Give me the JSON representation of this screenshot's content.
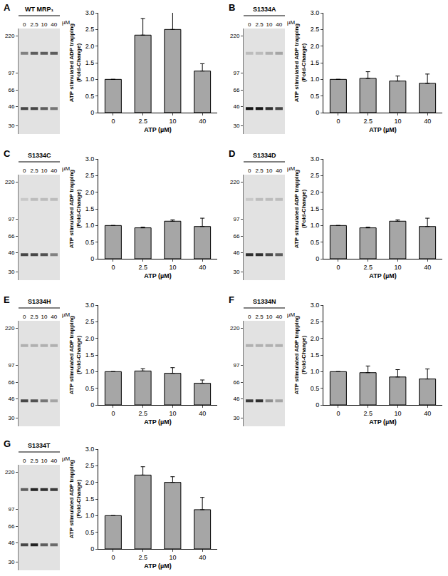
{
  "chart_data": [
    {
      "type": "gel",
      "panel": "A",
      "title": "WT MRP₁",
      "categories": [
        "0",
        "2.5",
        "10",
        "40"
      ],
      "unit": "µM",
      "log": "y",
      "ylim": [
        25,
        260
      ],
      "yticks": [
        220,
        97,
        66,
        46,
        30
      ],
      "bands": [
        {
          "mw": 150,
          "values": [
            0.45,
            0.6,
            0.6,
            0.6
          ],
          "marker": "arrow"
        },
        {
          "mw": 44,
          "values": [
            0.7,
            0.7,
            0.6,
            0.5
          ]
        }
      ]
    },
    {
      "type": "bar",
      "categories": [
        "0",
        "2.5",
        "10",
        "40"
      ],
      "values": [
        1.0,
        2.33,
        2.5,
        1.25
      ],
      "errors": [
        0,
        0.5,
        0.58,
        0.22
      ],
      "color": "#a6a6a6",
      "ylim": [
        0,
        3
      ],
      "yticks": [
        0,
        0.5,
        {
          "value": 1,
          "label": "1.0"
        },
        1.5,
        {
          "value": 2,
          "label": "2.0"
        },
        2.5,
        {
          "value": 3,
          "label": "3.0"
        }
      ],
      "y_label": "ATP stimulated ADP trapping\n(Fold-Change)",
      "x_label": "ATP (µM)"
    },
    {
      "type": "gel",
      "panel": "B",
      "title": "S1334A",
      "categories": [
        "0",
        "2.5",
        "10",
        "40"
      ],
      "unit": "µM",
      "log": "y",
      "ylim": [
        25,
        260
      ],
      "yticks": [
        220,
        97,
        66,
        46,
        30
      ],
      "bands": [
        {
          "mw": 150,
          "values": [
            0.2,
            0.2,
            0.25,
            0.3
          ],
          "marker": "arrow"
        },
        {
          "mw": 44,
          "values": [
            0.9,
            0.9,
            0.8,
            0.7
          ]
        }
      ]
    },
    {
      "type": "bar",
      "categories": [
        "0",
        "2.5",
        "10",
        "40"
      ],
      "values": [
        1.0,
        1.03,
        0.95,
        0.88
      ],
      "errors": [
        0,
        0.2,
        0.15,
        0.28
      ],
      "color": "#a6a6a6",
      "ylim": [
        0,
        3
      ],
      "yticks": [
        0,
        0.5,
        {
          "value": 1,
          "label": "1.0"
        },
        1.5,
        {
          "value": 2,
          "label": "2.0"
        },
        2.5,
        {
          "value": 3,
          "label": "3.0"
        }
      ],
      "y_label": "ATP stimulated ADP trapping\n(Fold-Change)",
      "x_label": "ATP (µM)"
    },
    {
      "type": "gel",
      "panel": "C",
      "title": "S1334C",
      "categories": [
        "0",
        "2.5",
        "10",
        "40"
      ],
      "unit": "µM",
      "log": "y",
      "ylim": [
        25,
        260
      ],
      "yticks": [
        220,
        97,
        66,
        46,
        30
      ],
      "bands": [
        {
          "mw": 150,
          "values": [
            0.15,
            0.2,
            0.2,
            0.2
          ],
          "marker": "arrow"
        },
        {
          "mw": 44,
          "values": [
            0.7,
            0.7,
            0.65,
            0.45
          ]
        }
      ]
    },
    {
      "type": "bar",
      "categories": [
        "0",
        "2.5",
        "10",
        "40"
      ],
      "values": [
        1.0,
        0.93,
        1.13,
        0.97
      ],
      "errors": [
        0,
        0.02,
        0.04,
        0.25
      ],
      "color": "#a6a6a6",
      "ylim": [
        0,
        3
      ],
      "yticks": [
        0,
        0.5,
        {
          "value": 1,
          "label": "1.0"
        },
        1.5,
        {
          "value": 2,
          "label": "2.0"
        },
        2.5,
        {
          "value": 3,
          "label": "3.0"
        }
      ],
      "y_label": "ATP stimulated ADP trapping\n(Fold-Change)",
      "x_label": "ATP (µM)"
    },
    {
      "type": "gel",
      "panel": "D",
      "title": "S1334D",
      "categories": [
        "0",
        "2.5",
        "10",
        "40"
      ],
      "unit": "µM",
      "log": "y",
      "ylim": [
        25,
        260
      ],
      "yticks": [
        220,
        97,
        66,
        46,
        30
      ],
      "bands": [
        {
          "mw": 150,
          "values": [
            0.15,
            0.2,
            0.2,
            0.2
          ],
          "marker": "arrow"
        },
        {
          "mw": 44,
          "values": [
            0.8,
            0.8,
            0.7,
            0.6
          ]
        }
      ]
    },
    {
      "type": "bar",
      "categories": [
        "0",
        "2.5",
        "10",
        "40"
      ],
      "values": [
        1.0,
        0.93,
        1.13,
        0.97
      ],
      "errors": [
        0,
        0.02,
        0.04,
        0.25
      ],
      "color": "#a6a6a6",
      "ylim": [
        0,
        3
      ],
      "yticks": [
        0,
        0.5,
        {
          "value": 1,
          "label": "1.0"
        },
        1.5,
        {
          "value": 2,
          "label": "2.0"
        },
        2.5,
        {
          "value": 3,
          "label": "3.0"
        }
      ],
      "y_label": "ATP stimulated ADP trapping\n(Fold-Change)",
      "x_label": "ATP (µM)"
    },
    {
      "type": "gel",
      "panel": "E",
      "title": "S1334H",
      "categories": [
        "0",
        "2.5",
        "10",
        "40"
      ],
      "unit": "µM",
      "log": "y",
      "ylim": [
        25,
        260
      ],
      "yticks": [
        220,
        97,
        66,
        46,
        30
      ],
      "bands": [
        {
          "mw": 150,
          "values": [
            0.25,
            0.25,
            0.25,
            0.25
          ],
          "marker": "arrow"
        },
        {
          "mw": 44,
          "values": [
            0.7,
            0.65,
            0.5,
            0.3
          ]
        }
      ]
    },
    {
      "type": "bar",
      "categories": [
        "0",
        "2.5",
        "10",
        "40"
      ],
      "values": [
        1.0,
        1.02,
        0.95,
        0.65
      ],
      "errors": [
        0,
        0.07,
        0.17,
        0.1
      ],
      "color": "#a6a6a6",
      "ylim": [
        0,
        3
      ],
      "yticks": [
        0,
        0.5,
        {
          "value": 1,
          "label": "1.0"
        },
        1.5,
        {
          "value": 2,
          "label": "2.0"
        },
        2.5,
        {
          "value": 3,
          "label": "3.0"
        }
      ],
      "y_label": "ATP stimulated ADP trapping\n(Fold-Change)",
      "x_label": "ATP (µM)"
    },
    {
      "type": "gel",
      "panel": "F",
      "title": "S1334N",
      "categories": [
        "0",
        "2.5",
        "10",
        "40"
      ],
      "unit": "µM",
      "log": "y",
      "ylim": [
        25,
        260
      ],
      "yticks": [
        220,
        97,
        66,
        46,
        30
      ],
      "bands": [
        {
          "mw": 150,
          "values": [
            0.25,
            0.25,
            0.25,
            0.25
          ],
          "marker": "arrow"
        },
        {
          "mw": 44,
          "values": [
            0.75,
            0.8,
            0.4,
            0.3
          ]
        }
      ]
    },
    {
      "type": "bar",
      "categories": [
        "0",
        "2.5",
        "10",
        "40"
      ],
      "values": [
        1.0,
        0.97,
        0.84,
        0.78
      ],
      "errors": [
        0,
        0.2,
        0.22,
        0.3
      ],
      "color": "#a6a6a6",
      "ylim": [
        0,
        3
      ],
      "yticks": [
        0,
        0.5,
        {
          "value": 1,
          "label": "1.0"
        },
        1.5,
        {
          "value": 2,
          "label": "2.0"
        },
        2.5,
        {
          "value": 3,
          "label": "3.0"
        }
      ],
      "y_label": "ATP stimulated ADP trapping\n(Fold-Change)",
      "x_label": "ATP (µM)"
    },
    {
      "type": "gel",
      "panel": "G",
      "title": "S1334T",
      "categories": [
        "0",
        "2.5",
        "10",
        "40"
      ],
      "unit": "µM",
      "log": "y",
      "ylim": [
        25,
        260
      ],
      "yticks": [
        220,
        97,
        66,
        46,
        30
      ],
      "bands": [
        {
          "mw": 150,
          "values": [
            0.6,
            0.85,
            0.8,
            0.75
          ],
          "marker": "arrow"
        },
        {
          "mw": 44,
          "values": [
            0.7,
            0.85,
            0.6,
            0.55
          ]
        }
      ]
    },
    {
      "type": "bar",
      "categories": [
        "0",
        "2.5",
        "10",
        "40"
      ],
      "values": [
        1.0,
        2.22,
        2.0,
        1.18
      ],
      "errors": [
        0,
        0.25,
        0.17,
        0.37
      ],
      "color": "#a6a6a6",
      "ylim": [
        0,
        3
      ],
      "yticks": [
        0,
        0.5,
        {
          "value": 1,
          "label": "1.0"
        },
        1.5,
        {
          "value": 2,
          "label": "2.0"
        },
        2.5,
        {
          "value": 3,
          "label": "3.0"
        }
      ],
      "y_label": "ATP stimulated ADP trapping\n(Fold-Change)",
      "x_label": "ATP (µM)"
    }
  ]
}
